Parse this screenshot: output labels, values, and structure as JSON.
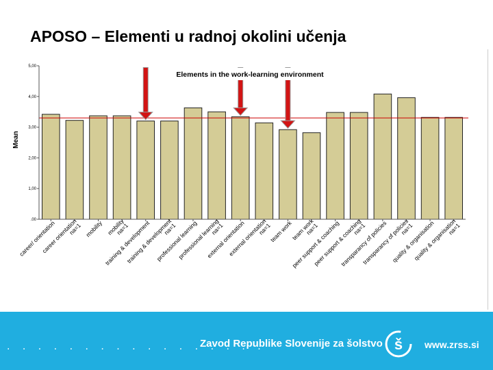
{
  "slide": {
    "title": "APOSO – Elementi u radnoj okolini učenja"
  },
  "footer": {
    "dots": ". . . . . . . . . . . . . . . . .",
    "organization": "Zavod Republike Slovenije za šolstvo",
    "url": "www.zrss.si",
    "logo_letter": "š"
  },
  "colors": {
    "bar_fill": "#d4cc96",
    "bar_stroke": "#222222",
    "reference_line": "#cc0000",
    "arrow": "#d21414",
    "footer_bg": "#20aee0"
  },
  "chart_data": {
    "type": "bar",
    "title": "Elements in the work-learning environment",
    "xlabel": "",
    "ylabel": "Mean",
    "ylim": [
      0,
      5
    ],
    "yticks": [
      ".00",
      "1,00",
      "2,00",
      "3,00",
      "4,00",
      "5,00"
    ],
    "ytick_values": [
      0,
      1,
      2,
      3,
      4,
      5
    ],
    "categories": [
      "career/ orientation",
      "career orientation na=1",
      "mobility",
      "mobility na=1",
      "training & development",
      "training & development na=1",
      "professional learning",
      "professional learning na=1",
      "external orientation",
      "external orientation na=1",
      "team work",
      "team work na=1",
      "peer support & coaching",
      "peer support & coaching na=1",
      "transparancy of policies",
      "transparancy of policies na=1",
      "quality & organisation",
      "quality & organisation na=1"
    ],
    "values": [
      3.42,
      3.22,
      3.37,
      3.37,
      3.2,
      3.2,
      3.63,
      3.5,
      3.34,
      3.14,
      2.92,
      2.82,
      3.48,
      3.48,
      4.08,
      3.96,
      3.32,
      3.32
    ],
    "reference_line": 3.3,
    "highlight_arrows": [
      "training & development",
      "external orientation",
      "team work"
    ]
  }
}
